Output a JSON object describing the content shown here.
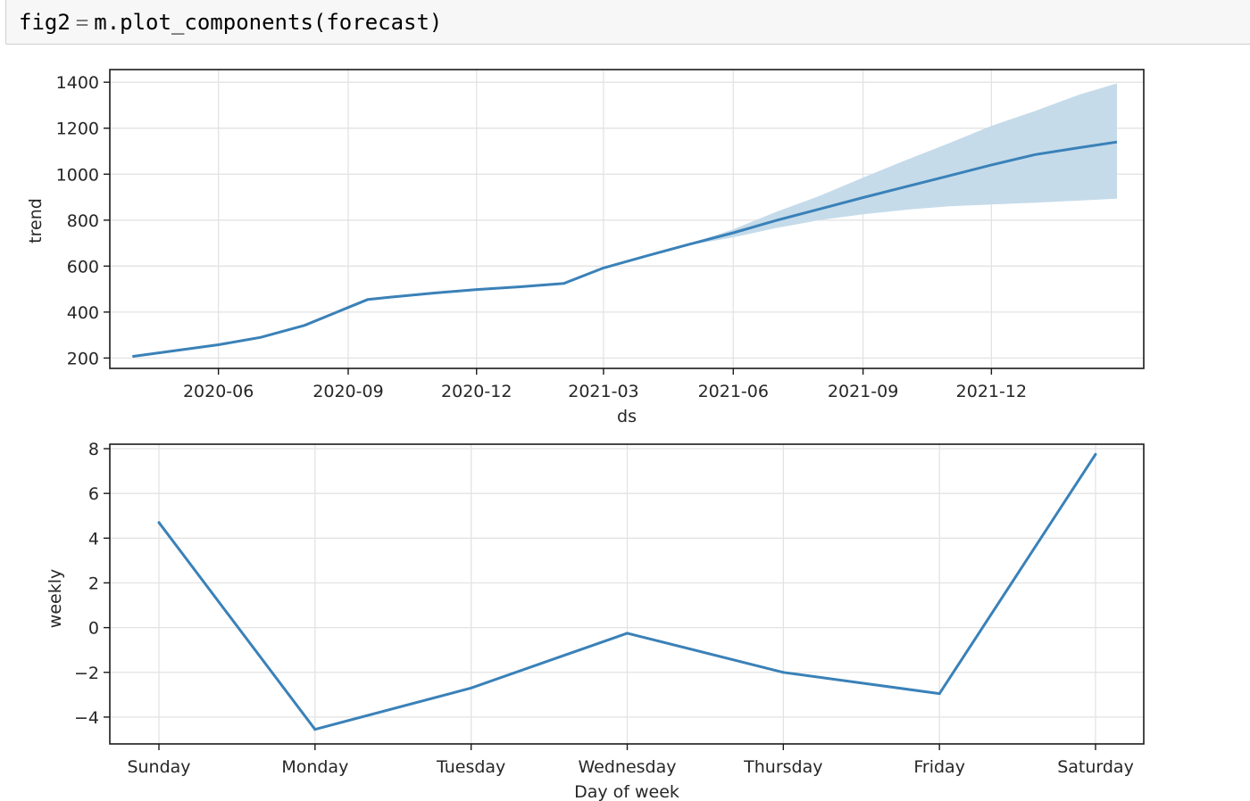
{
  "code_cell": {
    "var": "fig2",
    "op": "=",
    "obj": "m",
    "call": ".plot_components(forecast)"
  },
  "colors": {
    "line": "#3a81b8",
    "band": "#c5dbea",
    "grid": "#e3e3e3",
    "frame": "#1a1a1a",
    "cell_bg": "#f7f7f7"
  },
  "chart_data": [
    {
      "type": "line",
      "title": "",
      "xlabel": "ds",
      "ylabel": "trend",
      "grid": true,
      "x_ticks": [
        "2020-06",
        "2020-09",
        "2020-12",
        "2021-03",
        "2021-06",
        "2021-09",
        "2021-12"
      ],
      "y_ticks": [
        200,
        400,
        600,
        800,
        1000,
        1200,
        1400
      ],
      "xlim": [
        "2020-03-16",
        "2022-03-19"
      ],
      "ylim": [
        155,
        1455
      ],
      "series": [
        {
          "x": [
            "2020-04-01",
            "2020-06-01",
            "2020-07-01",
            "2020-08-01",
            "2020-09-01",
            "2020-09-15",
            "2020-10-01",
            "2020-11-01",
            "2020-12-01",
            "2021-01-01",
            "2021-02-01",
            "2021-03-01",
            "2021-04-01",
            "2021-05-01",
            "2021-06-01",
            "2021-07-01",
            "2021-08-01",
            "2021-09-01",
            "2021-10-01",
            "2021-11-01",
            "2021-12-01",
            "2022-01-01",
            "2022-02-01",
            "2022-02-28"
          ],
          "y": [
            207,
            258,
            290,
            342,
            420,
            455,
            465,
            483,
            498,
            510,
            525,
            592,
            645,
            695,
            745,
            798,
            848,
            898,
            945,
            993,
            1040,
            1085,
            1115,
            1140
          ]
        }
      ],
      "uncertainty_band": {
        "x": [
          "2021-04-15",
          "2021-05-01",
          "2021-06-01",
          "2021-07-01",
          "2021-08-01",
          "2021-09-01",
          "2021-10-01",
          "2021-11-01",
          "2021-12-01",
          "2022-01-01",
          "2022-02-01",
          "2022-02-28"
        ],
        "upper": [
          676,
          698,
          760,
          835,
          905,
          985,
          1060,
          1135,
          1210,
          1275,
          1345,
          1395
        ],
        "lower": [
          676,
          692,
          725,
          765,
          800,
          825,
          845,
          860,
          868,
          876,
          885,
          893
        ]
      }
    },
    {
      "type": "line",
      "title": "",
      "xlabel": "Day of week",
      "ylabel": "weekly",
      "grid": true,
      "categories": [
        "Sunday",
        "Monday",
        "Tuesday",
        "Wednesday",
        "Thursday",
        "Friday",
        "Saturday"
      ],
      "y_ticks": [
        8,
        6,
        4,
        2,
        0,
        -2,
        -4
      ],
      "ylim": [
        -5.2,
        8.2
      ],
      "series": [
        {
          "values": [
            4.7,
            -4.55,
            -2.7,
            -0.25,
            -2.0,
            -2.95,
            7.75
          ]
        }
      ]
    }
  ]
}
